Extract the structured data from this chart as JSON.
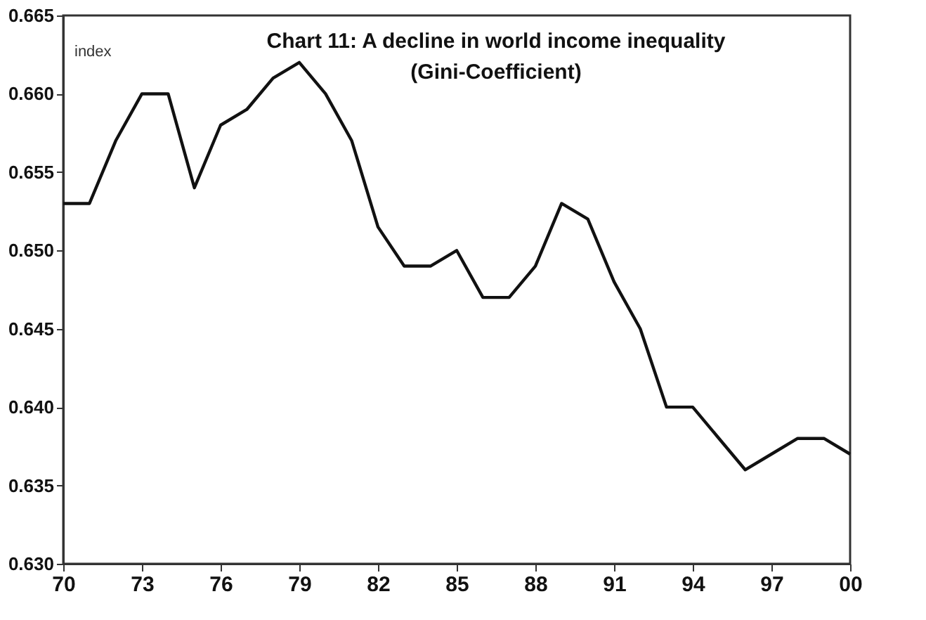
{
  "chart_data": {
    "type": "line",
    "title": "Chart 11: A decline in world income inequality",
    "subtitle": "(Gini-Coefficient)",
    "ylabel": "index",
    "x": [
      1970,
      1971,
      1972,
      1973,
      1974,
      1975,
      1976,
      1977,
      1978,
      1979,
      1980,
      1981,
      1982,
      1983,
      1984,
      1985,
      1986,
      1987,
      1988,
      1989,
      1990,
      1991,
      1992,
      1993,
      1994,
      1995,
      1996,
      1997,
      1998,
      1999,
      2000
    ],
    "series": [
      {
        "color": "#111111",
        "values": [
          0.653,
          0.653,
          0.657,
          0.66,
          0.66,
          0.654,
          0.658,
          0.659,
          0.661,
          0.662,
          0.66,
          0.657,
          0.6515,
          0.649,
          0.649,
          0.65,
          0.647,
          0.647,
          0.649,
          0.653,
          0.652,
          0.648,
          0.645,
          0.64,
          0.64,
          0.638,
          0.636,
          0.637,
          0.638,
          0.638,
          0.637
        ]
      }
    ],
    "xlim": [
      1970,
      2000
    ],
    "xticks": [
      {
        "value": 1970,
        "label": "70"
      },
      {
        "value": 1973,
        "label": "73"
      },
      {
        "value": 1976,
        "label": "76"
      },
      {
        "value": 1979,
        "label": "79"
      },
      {
        "value": 1982,
        "label": "82"
      },
      {
        "value": 1985,
        "label": "85"
      },
      {
        "value": 1988,
        "label": "88"
      },
      {
        "value": 1991,
        "label": "91"
      },
      {
        "value": 1994,
        "label": "94"
      },
      {
        "value": 1997,
        "label": "97"
      },
      {
        "value": 2000,
        "label": "00"
      }
    ],
    "ylim": [
      0.63,
      0.665
    ],
    "yticks": [
      {
        "value": 0.63,
        "label": "0.630"
      },
      0.635,
      {
        "value": 0.64,
        "label": "0.640"
      },
      0.645,
      {
        "value": 0.65,
        "label": "0.650"
      },
      0.655,
      {
        "value": 0.66,
        "label": "0.660"
      },
      0.665
    ],
    "grid": false,
    "legend": false,
    "marker": "none",
    "line_style": "solid"
  }
}
